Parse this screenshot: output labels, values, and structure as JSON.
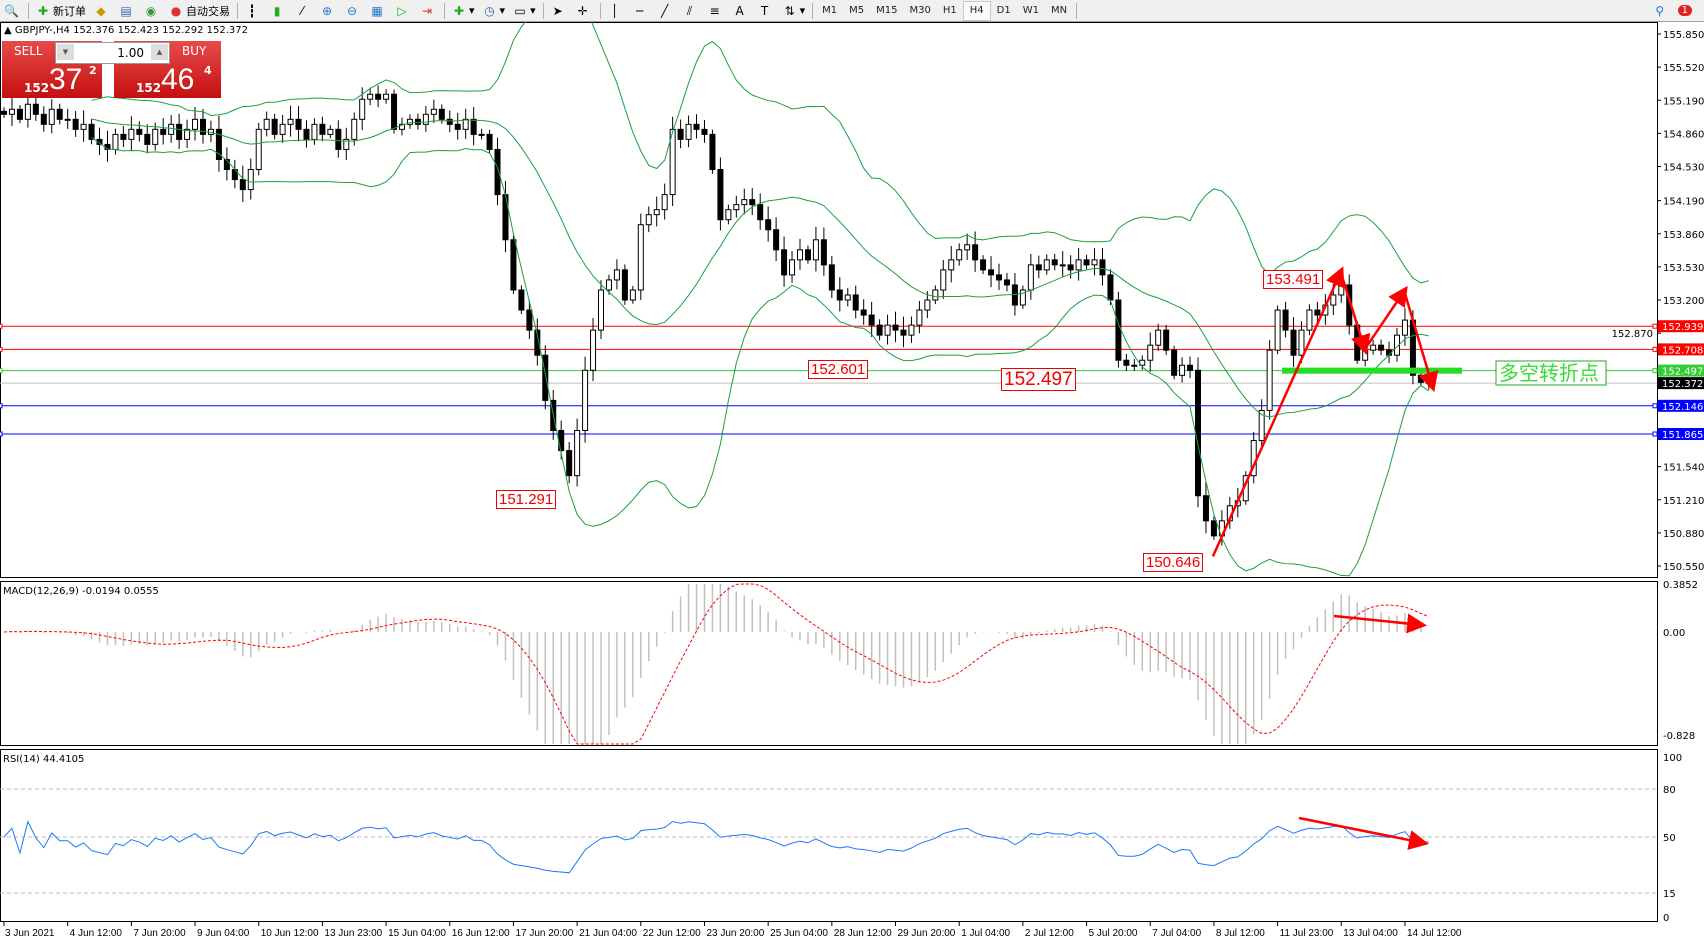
{
  "toolbar": {
    "new_order_label": "新订单",
    "auto_trading_label": "自动交易",
    "timeframes": [
      "M1",
      "M5",
      "M15",
      "M30",
      "H1",
      "H4",
      "D1",
      "W1",
      "MN"
    ],
    "active_timeframe": "H4",
    "notification_count": "1"
  },
  "chart_header": {
    "symbol": "GBPJPY-,H4",
    "ohlc": "152.376 152.423 152.292 152.372"
  },
  "one_click": {
    "sell_label": "SELL",
    "buy_label": "BUY",
    "lot": "1.00",
    "sell_price": {
      "prefix": "152",
      "big": "37",
      "sup": "2"
    },
    "buy_price": {
      "prefix": "152",
      "big": "46",
      "sup": "4"
    }
  },
  "chart_data": {
    "type": "candlestick",
    "symbol": "GBPJPY",
    "timeframe": "H4",
    "price_ticks": [
      "155.850",
      "155.520",
      "155.190",
      "154.860",
      "154.530",
      "154.190",
      "153.860",
      "153.530",
      "153.200",
      "152.870",
      "151.540",
      "151.210",
      "150.880",
      "150.550"
    ],
    "price_range": [
      150.55,
      155.85
    ],
    "time_labels": [
      "3 Jun 2021",
      "4 Jun 12:00",
      "7 Jun 20:00",
      "9 Jun 04:00",
      "10 Jun 12:00",
      "13 Jun 23:00",
      "15 Jun 04:00",
      "16 Jun 12:00",
      "17 Jun 20:00",
      "21 Jun 04:00",
      "22 Jun 12:00",
      "23 Jun 20:00",
      "25 Jun 04:00",
      "28 Jun 12:00",
      "29 Jun 20:00",
      "1 Jul 04:00",
      "2 Jul 12:00",
      "5 Jul 20:00",
      "7 Jul 04:00",
      "8 Jul 12:00",
      "11 Jul 23:00",
      "13 Jul 04:00",
      "14 Jul 12:00"
    ],
    "bars_per_label": 8,
    "closes": [
      155.05,
      155.1,
      155.0,
      155.15,
      155.05,
      154.95,
      155.1,
      155.0,
      155.0,
      154.9,
      154.95,
      154.8,
      154.75,
      154.7,
      154.85,
      154.8,
      154.9,
      154.85,
      154.75,
      154.9,
      154.85,
      154.95,
      154.8,
      154.9,
      155.0,
      154.85,
      154.9,
      154.6,
      154.5,
      154.4,
      154.3,
      154.5,
      154.9,
      155.0,
      154.85,
      154.95,
      155.0,
      154.9,
      154.8,
      154.95,
      154.85,
      154.9,
      154.7,
      154.8,
      155.0,
      155.2,
      155.25,
      155.2,
      155.25,
      154.9,
      154.95,
      155.0,
      154.95,
      155.05,
      155.1,
      155.0,
      154.95,
      154.9,
      155.0,
      154.85,
      154.85,
      154.7,
      154.25,
      153.8,
      153.3,
      153.1,
      152.9,
      152.65,
      152.2,
      151.9,
      151.7,
      151.45,
      151.9,
      152.5,
      152.9,
      153.3,
      153.4,
      153.5,
      153.2,
      153.3,
      153.95,
      154.05,
      154.1,
      154.25,
      154.9,
      154.8,
      154.95,
      154.9,
      154.85,
      154.5,
      154.0,
      154.1,
      154.15,
      154.2,
      154.15,
      154.0,
      153.9,
      153.7,
      153.45,
      153.6,
      153.7,
      153.6,
      153.8,
      153.55,
      153.3,
      153.2,
      153.25,
      153.1,
      153.05,
      152.95,
      152.85,
      152.95,
      152.9,
      152.85,
      152.95,
      153.1,
      153.2,
      153.3,
      153.5,
      153.6,
      153.7,
      153.75,
      153.6,
      153.5,
      153.45,
      153.4,
      153.35,
      153.15,
      153.3,
      153.55,
      153.5,
      153.6,
      153.55,
      153.55,
      153.5,
      153.6,
      153.55,
      153.6,
      153.45,
      153.2,
      152.6,
      152.55,
      152.55,
      152.6,
      152.75,
      152.9,
      152.7,
      152.45,
      152.55,
      152.5,
      151.25,
      151.0,
      150.85,
      151.0,
      151.15,
      151.2,
      151.45,
      151.8,
      152.1,
      152.7,
      153.1,
      152.9,
      152.65,
      152.9,
      153.1,
      153.05,
      153.15,
      153.25,
      153.35,
      152.95,
      152.6,
      152.7,
      152.75,
      152.7,
      152.65,
      152.85,
      153.0,
      152.45,
      152.38,
      152.372
    ],
    "bollinger": {
      "period": 20,
      "deviation": 2,
      "color": "#1aa040"
    },
    "horizontal_lines": [
      {
        "price": "152.939",
        "color": "#ff0000"
      },
      {
        "price": "152.708",
        "color": "#ff0000"
      },
      {
        "price": "152.497",
        "color": "#33cc33"
      },
      {
        "price": "152.146",
        "color": "#0000ff"
      },
      {
        "price": "151.865",
        "color": "#0000ff"
      }
    ],
    "bid_line": {
      "price": "152.372",
      "color": "#c0c0c0"
    },
    "annotations": [
      {
        "text": "151.291",
        "bar": 71
      },
      {
        "text": "152.601",
        "bar": 110
      },
      {
        "text": "152.497",
        "bar": 126
      },
      {
        "text": "150.646",
        "bar": 152
      },
      {
        "text": "153.491",
        "bar": 168
      }
    ],
    "turning_point_label": "多空转折点",
    "turning_point_price": 152.497,
    "zigzag_arrow_prices": [
      150.646,
      153.491,
      152.7,
      153.3,
      152.33
    ],
    "macd": {
      "label": "MACD(12,26,9) -0.0194 0.0555",
      "ticks": [
        "0.3852",
        "0.00",
        "-0.828"
      ],
      "range": [
        -0.828,
        0.3852
      ],
      "signal_color": "#ff0000",
      "histogram_color": "#c0c0c0"
    },
    "rsi": {
      "label": "RSI(14) 44.4105",
      "ticks": [
        "100",
        "80",
        "50",
        "15",
        "0"
      ],
      "levels": [
        80,
        50,
        15
      ],
      "color": "#1e78ff"
    },
    "arrow_color": "#ff0000"
  }
}
